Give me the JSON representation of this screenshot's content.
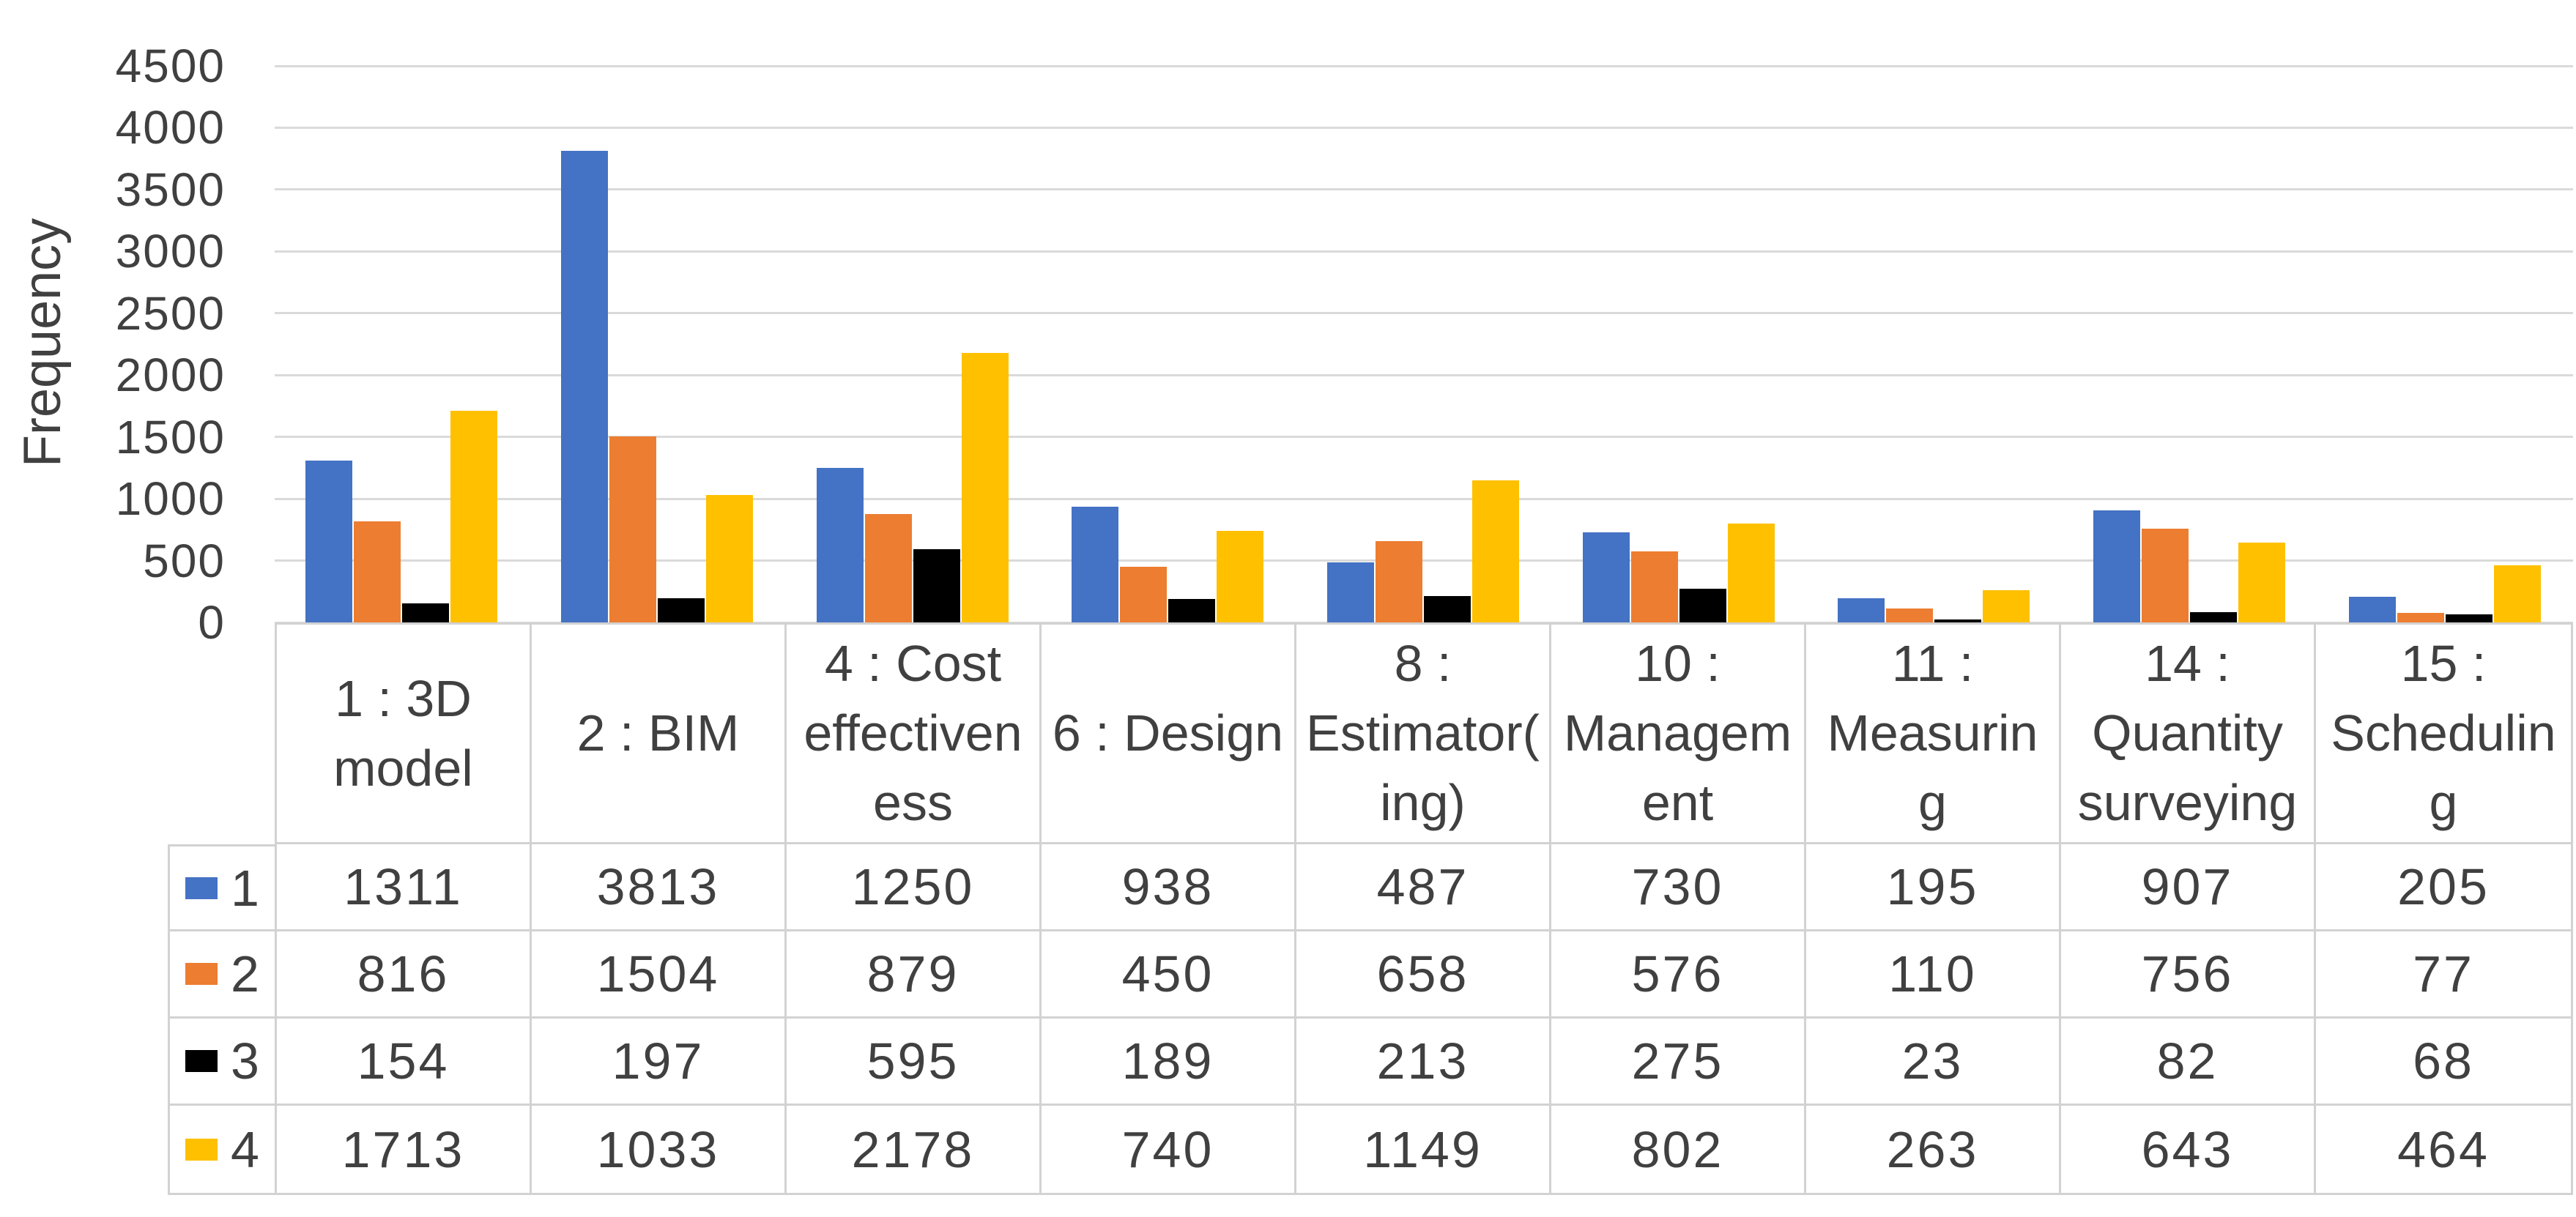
{
  "chart_data": {
    "type": "bar",
    "title": "",
    "xlabel": "",
    "ylabel": "Frequency",
    "ylim": [
      0,
      4500
    ],
    "ytick_step": 500,
    "ytick_labels": [
      "0",
      "500",
      "1000",
      "1500",
      "2000",
      "2500",
      "3000",
      "3500",
      "4000",
      "4500"
    ],
    "grid": true,
    "legend_position": "table-row-keys-left",
    "categories": [
      {
        "label": "1 : 3D model",
        "lines": [
          "1 : 3D",
          "model"
        ]
      },
      {
        "label": "2 : BIM",
        "lines": [
          "2 : BIM"
        ]
      },
      {
        "label": "4 : Cost effectiveness",
        "lines": [
          "4 : Cost",
          "effectiven",
          "ess"
        ]
      },
      {
        "label": "6 : Design",
        "lines": [
          "6 : Design"
        ]
      },
      {
        "label": "8 : Estimator(ing)",
        "lines": [
          "8 :",
          "Estimator(",
          "ing)"
        ]
      },
      {
        "label": "10 : Management",
        "lines": [
          "10 :",
          "Managem",
          "ent"
        ]
      },
      {
        "label": "11 : Measuring",
        "lines": [
          "11 :",
          "Measurin",
          "g"
        ]
      },
      {
        "label": "14 : Quantity surveying",
        "lines": [
          "14 :",
          "Quantity",
          "surveying"
        ]
      },
      {
        "label": "15 : Scheduling",
        "lines": [
          "15 :",
          "Schedulin",
          "g"
        ]
      }
    ],
    "series": [
      {
        "name": "1",
        "color": "#4472C4",
        "values": [
          1311,
          3813,
          1250,
          938,
          487,
          730,
          195,
          907,
          205
        ]
      },
      {
        "name": "2",
        "color": "#ED7D31",
        "values": [
          816,
          1504,
          879,
          450,
          658,
          576,
          110,
          756,
          77
        ]
      },
      {
        "name": "3",
        "color": "#000000",
        "values": [
          154,
          197,
          595,
          189,
          213,
          275,
          23,
          82,
          68
        ]
      },
      {
        "name": "4",
        "color": "#FFC000",
        "values": [
          1713,
          1033,
          2178,
          740,
          1149,
          802,
          263,
          643,
          464
        ]
      }
    ],
    "colors": {
      "gridline": "#dadada",
      "table_border": "#d2d2d2",
      "text": "#404040"
    }
  }
}
